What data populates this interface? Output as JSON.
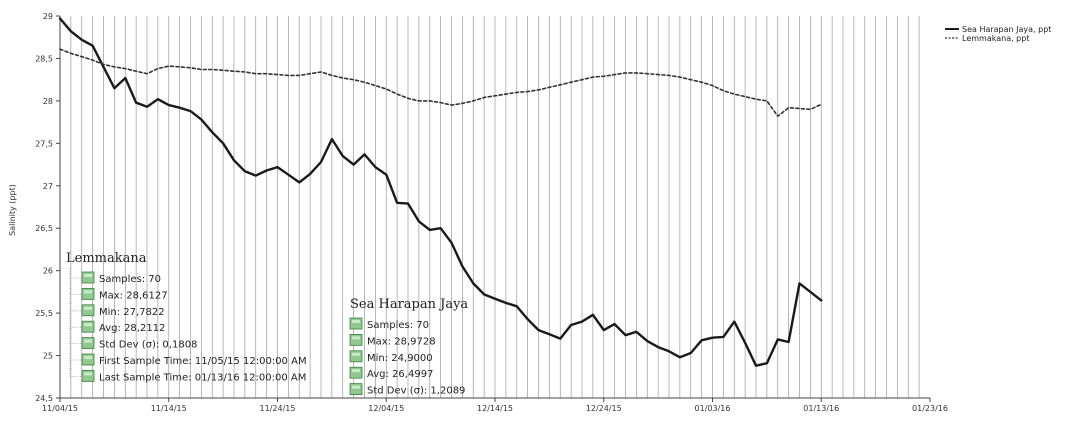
{
  "chart_data": {
    "type": "line",
    "ylabel": "Salinity (ppt)",
    "ylim": [
      24.5,
      29
    ],
    "y_ticks": [
      "29",
      "28,5",
      "28",
      "27,5",
      "27",
      "26,5",
      "26",
      "25,5",
      "25",
      "24,5"
    ],
    "x_ticks": [
      "11/04/15",
      "11/14/15",
      "11/24/15",
      "12/04/15",
      "12/14/15",
      "12/24/15",
      "01/03/16",
      "01/13/16",
      "01/23/16"
    ],
    "grid": "vertical",
    "legend_position": "top-right",
    "series": [
      {
        "name": "Sea Harapan Jaya, ppt",
        "color": "#1a1a1a",
        "dash": "solid",
        "x_day": [
          0,
          1,
          2,
          3,
          4,
          5,
          6,
          7,
          8,
          9,
          10,
          11,
          12,
          13,
          14,
          15,
          16,
          17,
          18,
          19,
          20,
          21,
          22,
          23,
          24,
          25,
          26,
          27,
          28,
          29,
          30,
          31,
          32,
          33,
          34,
          35,
          36,
          37,
          38,
          39,
          40,
          41,
          42,
          43,
          44,
          45,
          46,
          47,
          48,
          49,
          50,
          51,
          52,
          53,
          54,
          55,
          56,
          57,
          58,
          59,
          60,
          61,
          62,
          63,
          64,
          65,
          66,
          67,
          68,
          69,
          70
        ],
        "values": [
          28.97,
          28.82,
          28.72,
          28.65,
          28.4,
          28.15,
          28.27,
          27.98,
          27.93,
          28.02,
          27.95,
          27.92,
          27.88,
          27.78,
          27.63,
          27.5,
          27.3,
          27.17,
          27.12,
          27.18,
          27.22,
          27.13,
          27.04,
          27.14,
          27.28,
          27.55,
          27.35,
          27.25,
          27.37,
          27.22,
          27.13,
          26.8,
          26.79,
          26.58,
          26.48,
          26.5,
          26.33,
          26.05,
          25.85,
          25.72,
          25.67,
          25.62,
          25.58,
          25.43,
          25.3,
          25.25,
          25.2,
          25.36,
          25.4,
          25.48,
          25.3,
          25.37,
          25.24,
          25.28,
          25.17,
          25.1,
          25.05,
          24.98,
          25.03,
          25.18,
          25.21,
          25.22,
          25.4,
          25.15,
          24.88,
          24.91,
          25.19,
          25.16,
          25.85,
          25.75,
          25.65
        ]
      },
      {
        "name": "Lemmakana, ppt",
        "color": "#333333",
        "dash": "dotted",
        "x_day": [
          0,
          1,
          2,
          3,
          4,
          5,
          6,
          7,
          8,
          9,
          10,
          11,
          12,
          13,
          14,
          15,
          16,
          17,
          18,
          19,
          20,
          21,
          22,
          23,
          24,
          25,
          26,
          27,
          28,
          29,
          30,
          31,
          32,
          33,
          34,
          35,
          36,
          37,
          38,
          39,
          40,
          41,
          42,
          43,
          44,
          45,
          46,
          47,
          48,
          49,
          50,
          51,
          52,
          53,
          54,
          55,
          56,
          57,
          58,
          59,
          60,
          61,
          62,
          63,
          64,
          65,
          66,
          67,
          68,
          69,
          70
        ],
        "values": [
          28.61,
          28.56,
          28.52,
          28.48,
          28.43,
          28.4,
          28.38,
          28.35,
          28.32,
          28.38,
          28.41,
          28.4,
          28.39,
          28.37,
          28.37,
          28.36,
          28.35,
          28.34,
          28.32,
          28.32,
          28.31,
          28.3,
          28.3,
          28.32,
          28.34,
          28.3,
          28.27,
          28.25,
          28.22,
          28.18,
          28.14,
          28.08,
          28.03,
          28.0,
          28.0,
          27.98,
          27.95,
          27.97,
          28.0,
          28.04,
          28.06,
          28.08,
          28.1,
          28.11,
          28.13,
          28.16,
          28.19,
          28.22,
          28.25,
          28.28,
          28.29,
          28.31,
          28.33,
          28.33,
          28.32,
          28.31,
          28.3,
          28.28,
          28.25,
          28.22,
          28.18,
          28.12,
          28.08,
          28.05,
          28.02,
          28.0,
          27.82,
          27.92,
          27.91,
          27.9,
          27.96
        ]
      }
    ],
    "stats_boxes": [
      {
        "title": "Lemmakana",
        "items": [
          "Samples: 70",
          "Max: 28,6127",
          "Min: 27,7822",
          "Avg: 28,2112",
          "Std Dev (σ): 0,1808",
          "First Sample Time: 11/05/15 12:00:00 AM",
          "Last Sample Time: 01/13/16 12:00:00 AM"
        ]
      },
      {
        "title": "Sea Harapan Jaya",
        "items": [
          "Samples: 70",
          "Max: 28,9728",
          "Min: 24,9000",
          "Avg: 26,4997",
          "Std Dev (σ): 1,2089"
        ]
      }
    ]
  }
}
